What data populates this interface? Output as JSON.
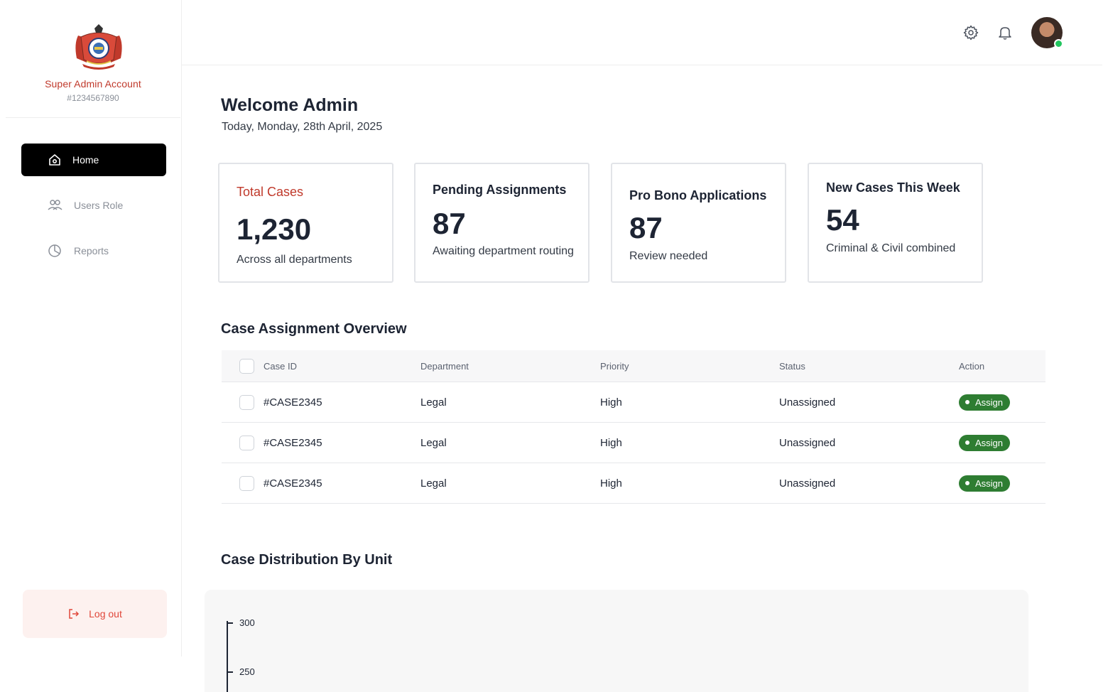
{
  "sidebar": {
    "account_name": "Super Admin Account",
    "account_id": "#1234567890",
    "items": [
      {
        "label": "Home",
        "icon": "home-icon",
        "active": true
      },
      {
        "label": "Users Role",
        "icon": "users-icon",
        "active": false
      },
      {
        "label": "Reports",
        "icon": "pie-chart-icon",
        "active": false
      }
    ],
    "logout_label": "Log out"
  },
  "header": {
    "icons": [
      "gear-icon",
      "bell-icon"
    ],
    "online_status_color": "#22c55e"
  },
  "welcome": {
    "title": "Welcome Admin",
    "date": "Today, Monday, 28th April, 2025"
  },
  "stats": [
    {
      "title": "Total Cases",
      "value": "1,230",
      "subtitle": "Across all departments"
    },
    {
      "title": "Pending Assignments",
      "value": "87",
      "subtitle": "Awaiting department routing"
    },
    {
      "title": "Pro Bono Applications",
      "value": "87",
      "subtitle": "Review needed"
    },
    {
      "title": "New Cases This Week",
      "value": "54",
      "subtitle": "Criminal & Civil combined"
    }
  ],
  "table": {
    "title": "Case Assignment Overview",
    "columns": [
      "Case ID",
      "Department",
      "Priority",
      "Status",
      "Action"
    ],
    "rows": [
      {
        "case_id": "#CASE2345",
        "department": "Legal",
        "priority": "High",
        "status": "Unassigned",
        "action": "Assign"
      },
      {
        "case_id": "#CASE2345",
        "department": "Legal",
        "priority": "High",
        "status": "Unassigned",
        "action": "Assign"
      },
      {
        "case_id": "#CASE2345",
        "department": "Legal",
        "priority": "High",
        "status": "Unassigned",
        "action": "Assign"
      }
    ]
  },
  "chart_section": {
    "title": "Case Distribution By Unit"
  },
  "chart_data": {
    "type": "bar",
    "title": "",
    "xlabel": "",
    "ylabel": "",
    "y_ticks_visible": [
      "300",
      "250"
    ],
    "categories": [],
    "values": []
  },
  "colors": {
    "accent_red": "#c0392b",
    "active_nav": "#000000",
    "assign_green": "#2e7d32",
    "logout_bg": "#fdf1ef"
  }
}
